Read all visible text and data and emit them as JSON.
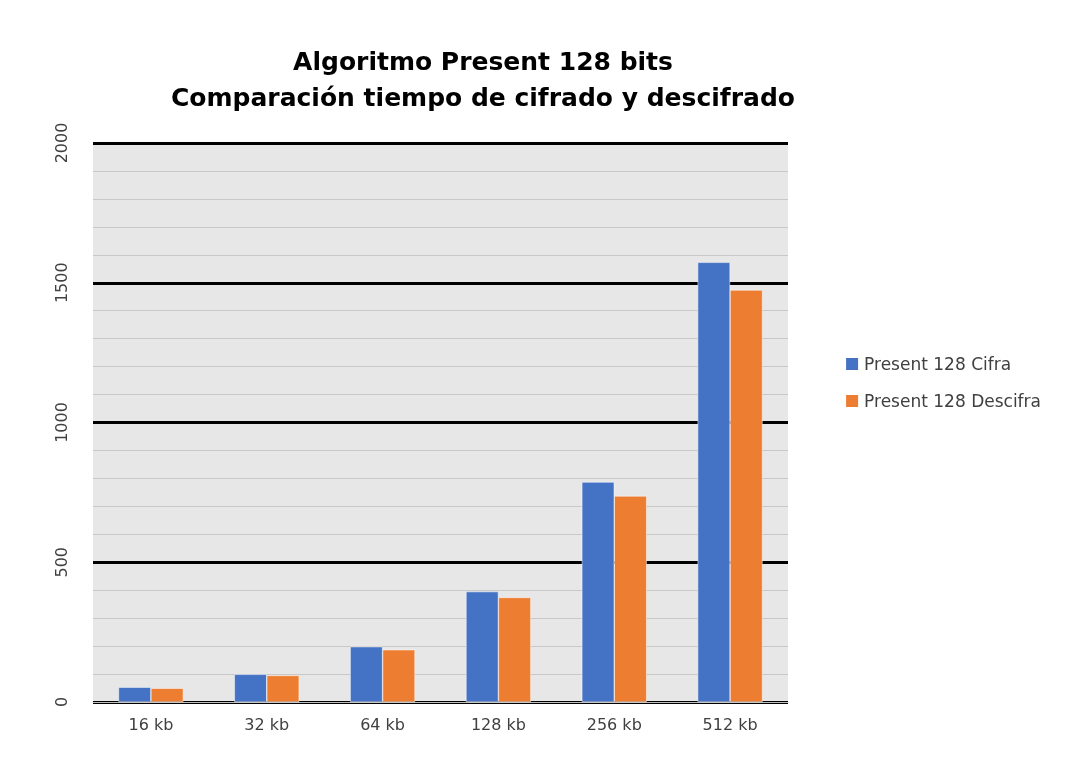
{
  "chart_data": {
    "type": "bar",
    "title": "Algoritmo Present 128 bits\nComparación tiempo de cifrado y descifrado",
    "categories": [
      "16 kb",
      "32 kb",
      "64 kb",
      "128 kb",
      "256 kb",
      "512 kb"
    ],
    "series": [
      {
        "name": "Present 128 Cifra",
        "color": "#4472c4",
        "values": [
          53,
          99,
          198,
          395,
          787,
          1573
        ]
      },
      {
        "name": "Present 128 Descifra",
        "color": "#ed7d31",
        "values": [
          49,
          95,
          187,
          374,
          737,
          1474
        ]
      }
    ],
    "ylim": [
      0,
      2000
    ],
    "yticks": [
      0,
      500,
      1000,
      1500,
      2000
    ],
    "grid": "y",
    "legend": "right"
  }
}
